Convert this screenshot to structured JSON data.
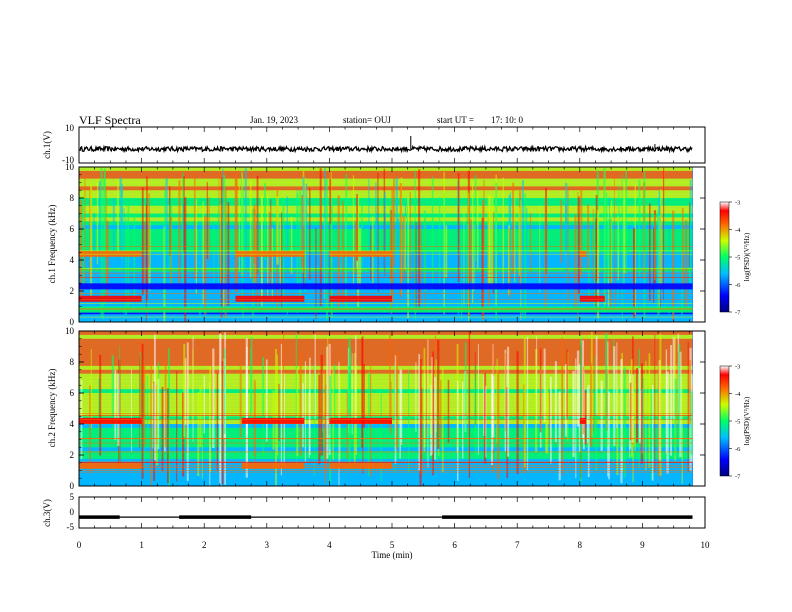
{
  "header": {
    "title": "VLF Spectra",
    "date": "Jan. 19, 2023",
    "station": "station= OUJ",
    "start": "start UT =",
    "start_time": "17: 10: 0"
  },
  "chart_data": [
    {
      "type": "line",
      "panel": "ch1-waveform",
      "ylabel": "ch.1(V)",
      "ylim": [
        -10,
        10
      ],
      "yticks": [
        "10",
        "-10"
      ],
      "x_unit": "min",
      "xlim": [
        0,
        10
      ],
      "data_extent_min": 9.8,
      "baseline_v": -2.2,
      "amplitude_v": 1.3,
      "spikes": [
        {
          "x": 5.3,
          "y": 5
        },
        {
          "x": 9.2,
          "y": 0.5
        }
      ]
    },
    {
      "type": "heatmap",
      "panel": "ch1-spectrogram",
      "ylabel": "ch.1 Frequency (kHz)",
      "ylim": [
        0,
        10
      ],
      "yticks": [
        "0",
        "2",
        "4",
        "6",
        "8",
        "10"
      ],
      "xlim": [
        0,
        10
      ],
      "colorbar": {
        "label": "log(PSD)(V²/Hz)",
        "min": -7,
        "max": -3,
        "ticks": [
          "-3",
          "-4",
          "-5",
          "-6",
          "-7"
        ]
      },
      "bands_kHz": [
        {
          "f": 4.4,
          "segments": [
            [
              0,
              1
            ],
            [
              2.5,
              3.6
            ],
            [
              4.0,
              5.0
            ],
            [
              8.0,
              8.1
            ]
          ],
          "level": -4
        },
        {
          "f": 1.5,
          "segments": [
            [
              0,
              1
            ],
            [
              2.5,
              3.6
            ],
            [
              4.0,
              5.0
            ],
            [
              8.0,
              8.4
            ]
          ],
          "level": -3.5
        },
        {
          "f": 2.3,
          "segments": [
            [
              0,
              9.8
            ]
          ],
          "level": -7
        },
        {
          "f": 0.8,
          "segments": [
            [
              0,
              9.8
            ]
          ],
          "level": -5.5
        }
      ]
    },
    {
      "type": "heatmap",
      "panel": "ch2-spectrogram",
      "ylabel": "ch.2 Frequency (kHz)",
      "ylim": [
        0,
        10
      ],
      "yticks": [
        "0",
        "2",
        "4",
        "6",
        "8",
        "10"
      ],
      "xlim": [
        0,
        10
      ],
      "colorbar": {
        "label": "log(PSD)(V²/Hz)",
        "min": -7,
        "max": -3,
        "ticks": [
          "-3",
          "-4",
          "-5",
          "-6",
          "-7"
        ]
      },
      "bands_kHz": [
        {
          "f": 4.2,
          "segments": [
            [
              0,
              1
            ],
            [
              2.6,
              3.6
            ],
            [
              4.0,
              5.0
            ],
            [
              8.0,
              8.1
            ]
          ],
          "level": -3.5
        },
        {
          "f": 1.3,
          "segments": [
            [
              0,
              1
            ],
            [
              2.6,
              3.6
            ],
            [
              4.0,
              5.0
            ]
          ],
          "level": -3.8
        }
      ]
    },
    {
      "type": "line",
      "panel": "ch3-signal",
      "ylabel": "ch.3(V)",
      "xlabel": "Time (min)",
      "ylim": [
        -5,
        5
      ],
      "yticks": [
        "5",
        "0",
        "-5"
      ],
      "xlim": [
        0,
        10
      ],
      "xticks": [
        "0",
        "1",
        "2",
        "3",
        "4",
        "5",
        "6",
        "7",
        "8",
        "9",
        "10"
      ],
      "level_v": -1.5,
      "thick_segments": [
        [
          0,
          0.65
        ],
        [
          1.6,
          2.75
        ],
        [
          5.8,
          9.8
        ]
      ]
    }
  ]
}
